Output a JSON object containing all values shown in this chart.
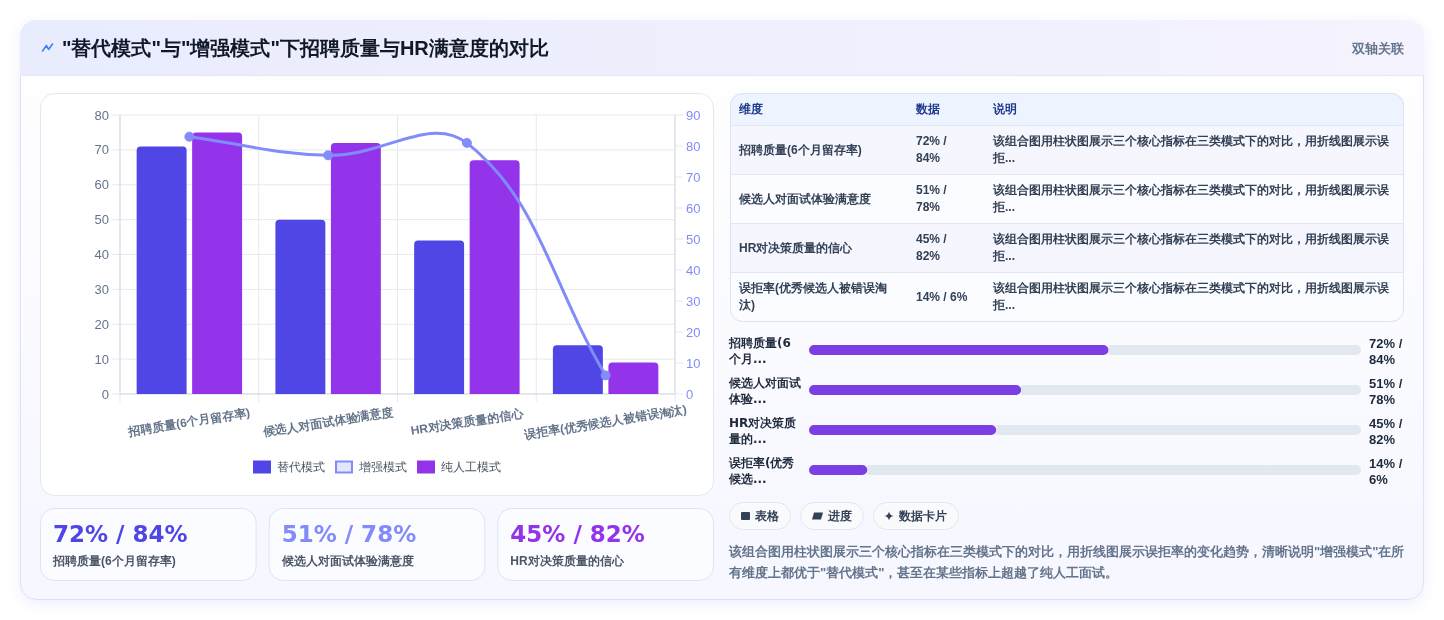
{
  "chart_data": [
    {
      "type": "bar",
      "title": "\"替代模式\"与\"增强模式\"下招聘质量与HR满意度的对比",
      "annotations": [
        "双轴关联"
      ],
      "categories": [
        "招聘质量(6个月留存率)",
        "候选人对面试体验满意度",
        "HR对决策质量的信心",
        "误拒率(优秀候选人被错误淘汰)"
      ],
      "series": [
        {
          "name": "替代模式",
          "color": "#4f46e5",
          "values": [
            71,
            50,
            44,
            14
          ]
        },
        {
          "name": "增强模式",
          "type": "line",
          "axis": "y2",
          "color": "#818cf8",
          "values": [
            83,
            77,
            81,
            6
          ]
        },
        {
          "name": "纯人工模式",
          "color": "#9333ea",
          "values": [
            75,
            72,
            67,
            9
          ]
        }
      ],
      "ylim": [
        0,
        80
      ],
      "yticks": [
        0,
        10,
        20,
        30,
        40,
        50,
        60,
        70,
        80
      ],
      "y2lim": [
        0,
        90
      ],
      "y2ticks": [
        0,
        10,
        20,
        30,
        40,
        50,
        60,
        70,
        80,
        90
      ],
      "grid": true,
      "legend": "bottom",
      "marker": "circle"
    },
    {
      "type": "other",
      "categories": [
        "招聘质量(6个月留存率)",
        "候选人对面试体验满意度",
        "HR对决策质量的信心"
      ],
      "value_labels": [
        "72% / 84%",
        "51% / 78%",
        "45% / 82%"
      ]
    },
    {
      "type": "other",
      "categories": [
        "维度",
        "数据",
        "说明"
      ],
      "cell_labels": [
        [
          "招聘质量(6个月留存率)",
          "72% / 84%",
          "该组合图用柱状图展示三个核心指标在三类模式下的对比，用折线图展示误拒..."
        ],
        [
          "候选人对面试体验满意度",
          "51% / 78%",
          "该组合图用柱状图展示三个核心指标在三类模式下的对比，用折线图展示误拒..."
        ],
        [
          "HR对决策质量的信心",
          "45% / 82%",
          "该组合图用柱状图展示三个核心指标在三类模式下的对比，用折线图展示误拒..."
        ],
        [
          "误拒率(优秀候选人被错误淘汰)",
          "14% / 6%",
          "该组合图用柱状图展示三个核心指标在三类模式下的对比，用折线图展示误拒..."
        ]
      ]
    },
    {
      "type": "bar",
      "orientation": "horizontal",
      "categories": [
        "招聘质量(6个月...",
        "候选人对面试体验...",
        "HR对决策质量的...",
        "误拒率(优秀候选..."
      ],
      "values": [
        72,
        51,
        45,
        14
      ],
      "value_labels": [
        "72% / 84%",
        "51% / 78%",
        "45% / 82%",
        "14% / 6%"
      ],
      "color": "#7b3fe4"
    },
    {
      "type": "other",
      "categories": [
        "表格",
        "进度",
        "数据卡片"
      ],
      "annotations": [
        "该组合图用柱状图展示三个核心指标在三类模式下的对比，用折线图展示误拒率的变化趋势，清晰说明\"增强模式\"在所有维度上都优于\"替代模式\"，甚至在某些指标上超越了纯人工面试。"
      ]
    }
  ]
}
